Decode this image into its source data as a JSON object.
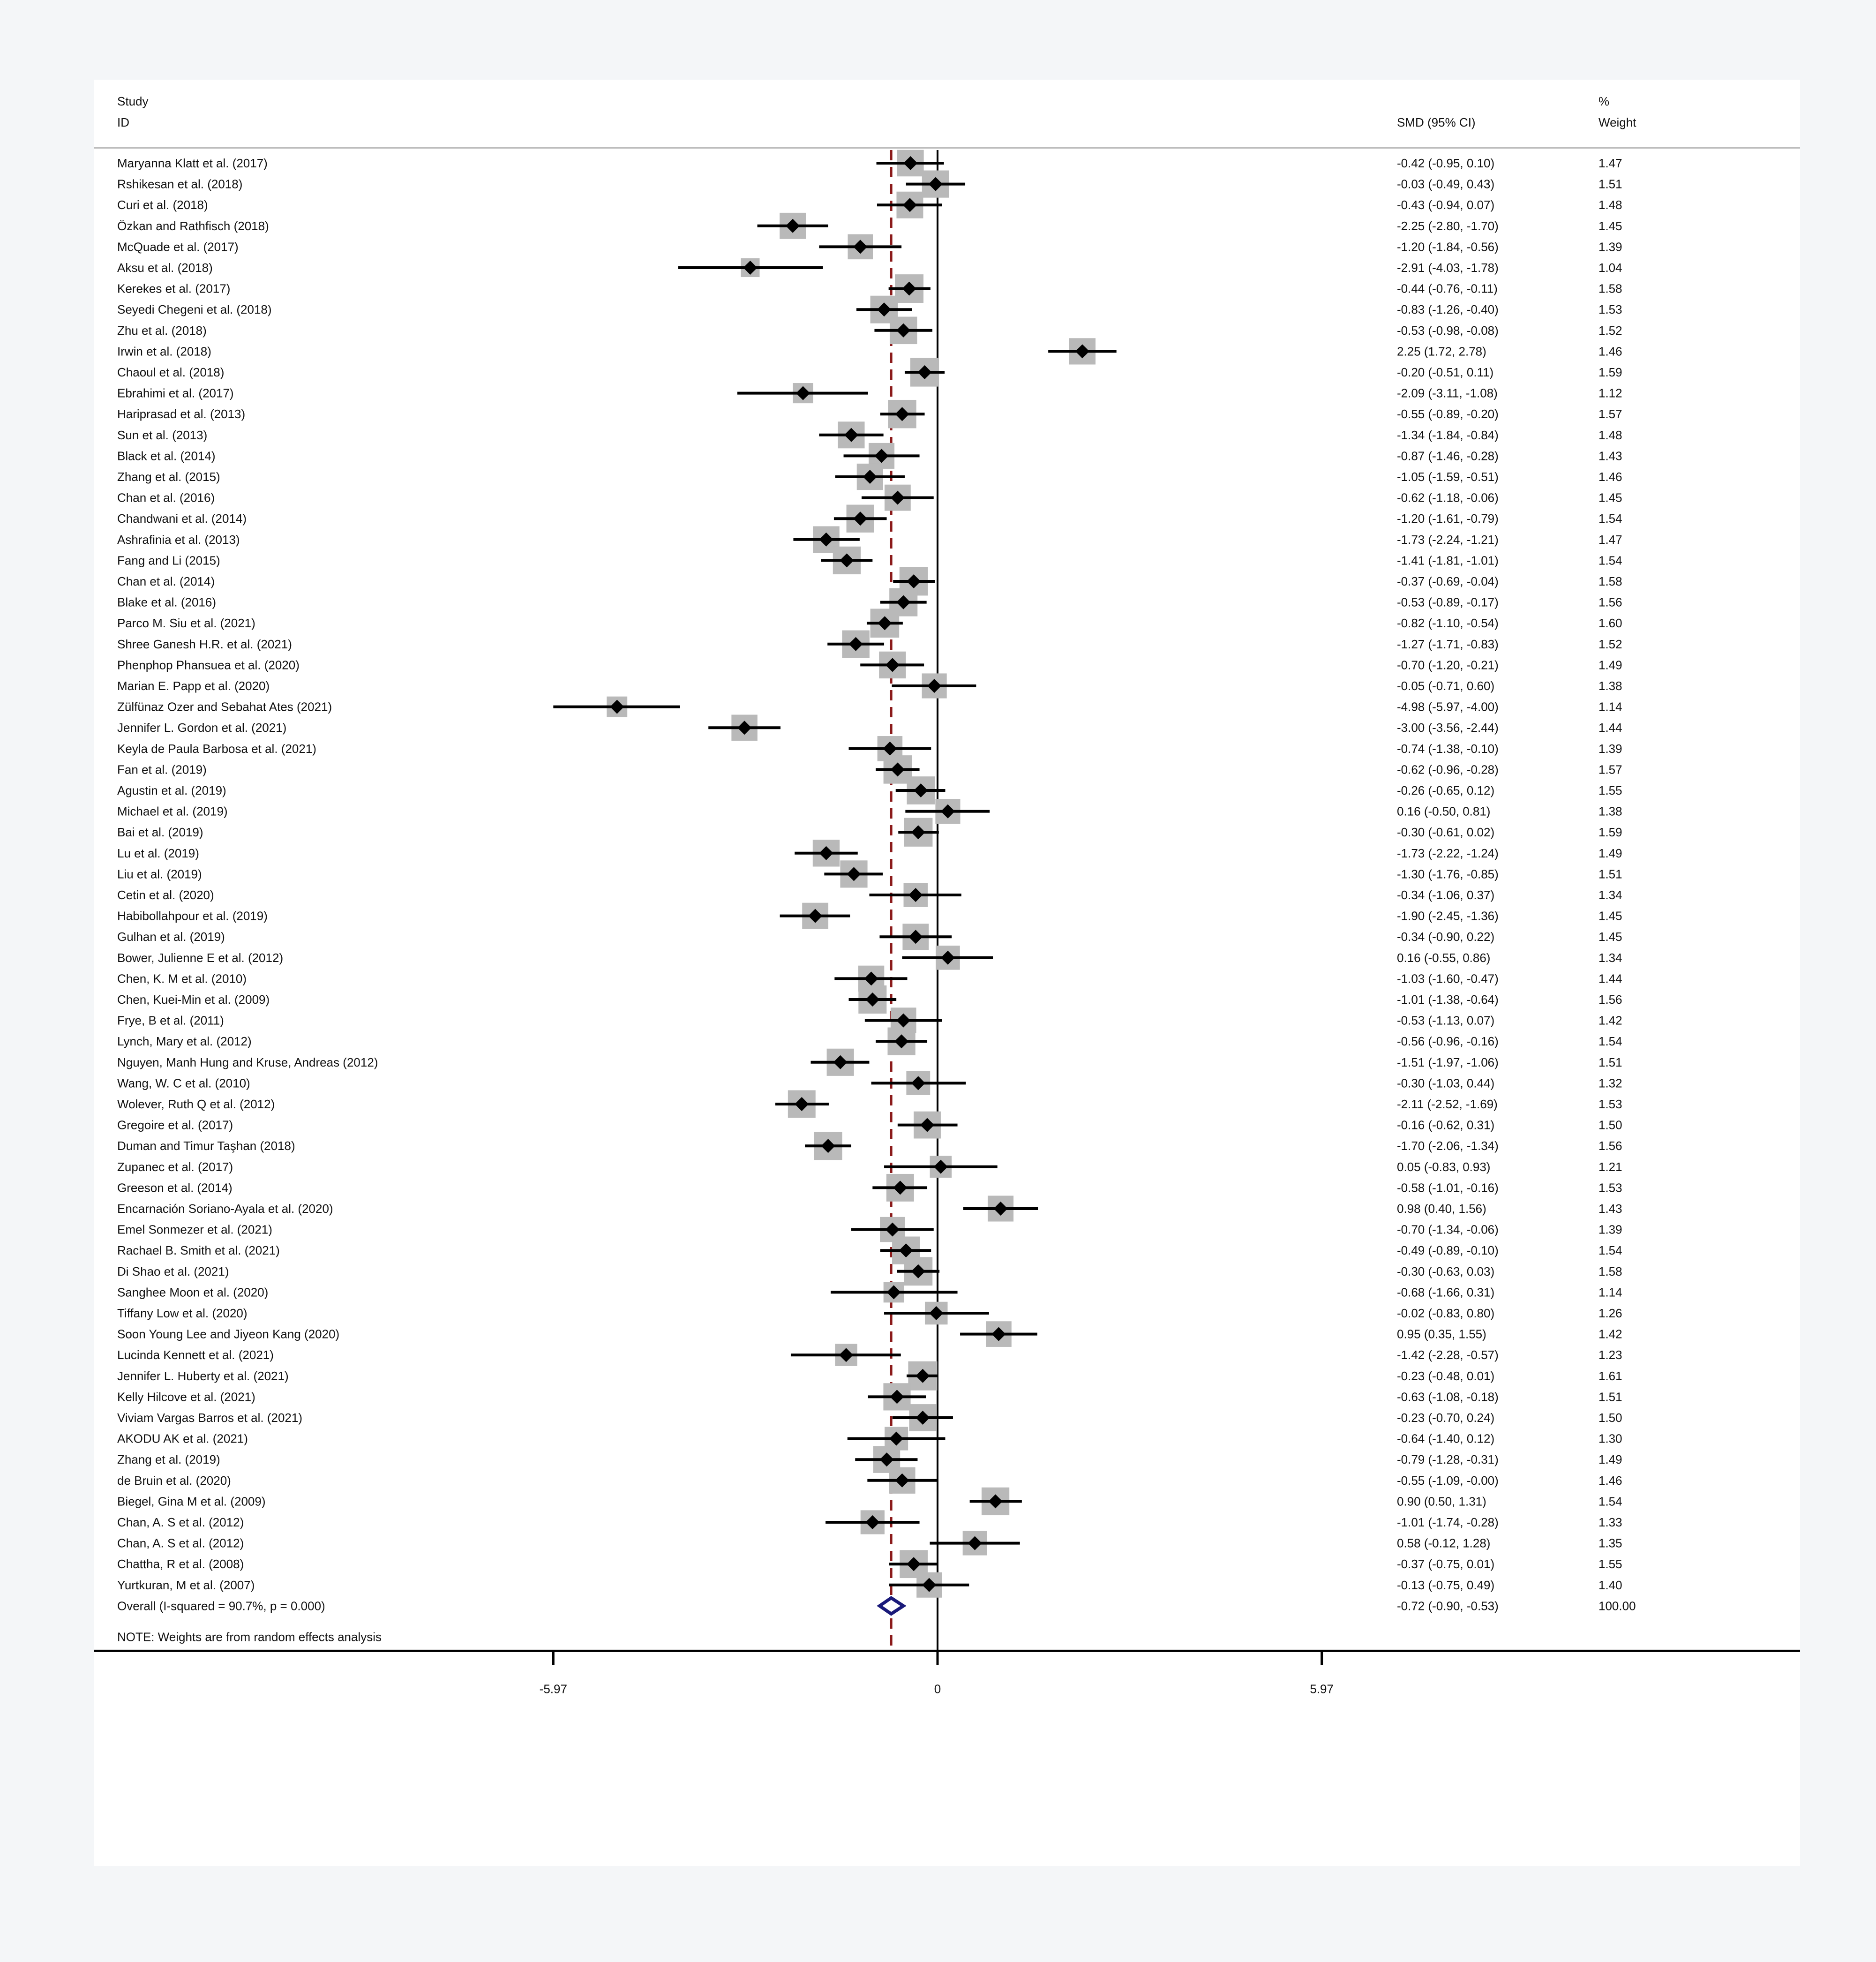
{
  "chart_data": {
    "type": "forest",
    "header": {
      "study_line1": "Study",
      "study_line2": "ID",
      "effect_label": "SMD (95% CI)",
      "weight_line1": "%",
      "weight_line2": "Weight"
    },
    "studies": [
      {
        "label": "Maryanna Klatt et al. (2017)",
        "es": -0.42,
        "lo": -0.95,
        "hi": 0.1,
        "ci_text": "-0.42 (-0.95, 0.10)",
        "weight": "1.47"
      },
      {
        "label": "Rshikesan et al. (2018)",
        "es": -0.03,
        "lo": -0.49,
        "hi": 0.43,
        "ci_text": "-0.03 (-0.49, 0.43)",
        "weight": "1.51"
      },
      {
        "label": "Curi et al. (2018)",
        "es": -0.43,
        "lo": -0.94,
        "hi": 0.07,
        "ci_text": "-0.43 (-0.94, 0.07)",
        "weight": "1.48"
      },
      {
        "label": "Özkan and Rathfisch (2018)",
        "es": -2.25,
        "lo": -2.8,
        "hi": -1.7,
        "ci_text": "-2.25 (-2.80, -1.70)",
        "weight": "1.45"
      },
      {
        "label": "McQuade et al. (2017)",
        "es": -1.2,
        "lo": -1.84,
        "hi": -0.56,
        "ci_text": "-1.20 (-1.84, -0.56)",
        "weight": "1.39"
      },
      {
        "label": "Aksu et al. (2018)",
        "es": -2.91,
        "lo": -4.03,
        "hi": -1.78,
        "ci_text": "-2.91 (-4.03, -1.78)",
        "weight": "1.04"
      },
      {
        "label": "Kerekes et al. (2017)",
        "es": -0.44,
        "lo": -0.76,
        "hi": -0.11,
        "ci_text": "-0.44 (-0.76, -0.11)",
        "weight": "1.58"
      },
      {
        "label": "Seyedi Chegeni et al. (2018)",
        "es": -0.83,
        "lo": -1.26,
        "hi": -0.4,
        "ci_text": "-0.83 (-1.26, -0.40)",
        "weight": "1.53"
      },
      {
        "label": "Zhu et al. (2018)",
        "es": -0.53,
        "lo": -0.98,
        "hi": -0.08,
        "ci_text": "-0.53 (-0.98, -0.08)",
        "weight": "1.52"
      },
      {
        "label": "Irwin et al. (2018)",
        "es": 2.25,
        "lo": 1.72,
        "hi": 2.78,
        "ci_text": "2.25 (1.72, 2.78)",
        "weight": "1.46"
      },
      {
        "label": "Chaoul et al. (2018)",
        "es": -0.2,
        "lo": -0.51,
        "hi": 0.11,
        "ci_text": "-0.20 (-0.51, 0.11)",
        "weight": "1.59"
      },
      {
        "label": "Ebrahimi et al. (2017)",
        "es": -2.09,
        "lo": -3.11,
        "hi": -1.08,
        "ci_text": "-2.09 (-3.11, -1.08)",
        "weight": "1.12"
      },
      {
        "label": "Hariprasad et al. (2013)",
        "es": -0.55,
        "lo": -0.89,
        "hi": -0.2,
        "ci_text": "-0.55 (-0.89, -0.20)",
        "weight": "1.57"
      },
      {
        "label": "Sun et al. (2013)",
        "es": -1.34,
        "lo": -1.84,
        "hi": -0.84,
        "ci_text": "-1.34 (-1.84, -0.84)",
        "weight": "1.48"
      },
      {
        "label": "Black et al. (2014)",
        "es": -0.87,
        "lo": -1.46,
        "hi": -0.28,
        "ci_text": "-0.87 (-1.46, -0.28)",
        "weight": "1.43"
      },
      {
        "label": "Zhang et al. (2015)",
        "es": -1.05,
        "lo": -1.59,
        "hi": -0.51,
        "ci_text": "-1.05 (-1.59, -0.51)",
        "weight": "1.46"
      },
      {
        "label": "Chan et al. (2016)",
        "es": -0.62,
        "lo": -1.18,
        "hi": -0.06,
        "ci_text": "-0.62 (-1.18, -0.06)",
        "weight": "1.45"
      },
      {
        "label": "Chandwani et al. (2014)",
        "es": -1.2,
        "lo": -1.61,
        "hi": -0.79,
        "ci_text": "-1.20 (-1.61, -0.79)",
        "weight": "1.54"
      },
      {
        "label": "Ashrafinia et al. (2013)",
        "es": -1.73,
        "lo": -2.24,
        "hi": -1.21,
        "ci_text": "-1.73 (-2.24, -1.21)",
        "weight": "1.47"
      },
      {
        "label": "Fang and Li (2015)",
        "es": -1.41,
        "lo": -1.81,
        "hi": -1.01,
        "ci_text": "-1.41 (-1.81, -1.01)",
        "weight": "1.54"
      },
      {
        "label": "Chan et al. (2014)",
        "es": -0.37,
        "lo": -0.69,
        "hi": -0.04,
        "ci_text": "-0.37 (-0.69, -0.04)",
        "weight": "1.58"
      },
      {
        "label": "Blake et al. (2016)",
        "es": -0.53,
        "lo": -0.89,
        "hi": -0.17,
        "ci_text": "-0.53 (-0.89, -0.17)",
        "weight": "1.56"
      },
      {
        "label": "Parco M. Siu et al. (2021)",
        "es": -0.82,
        "lo": -1.1,
        "hi": -0.54,
        "ci_text": "-0.82 (-1.10, -0.54)",
        "weight": "1.60"
      },
      {
        "label": "Shree Ganesh H.R. et al. (2021)",
        "es": -1.27,
        "lo": -1.71,
        "hi": -0.83,
        "ci_text": "-1.27 (-1.71, -0.83)",
        "weight": "1.52"
      },
      {
        "label": "Phenphop Phansuea et al. (2020)",
        "es": -0.7,
        "lo": -1.2,
        "hi": -0.21,
        "ci_text": "-0.70 (-1.20, -0.21)",
        "weight": "1.49"
      },
      {
        "label": "Marian E. Papp et al. (2020)",
        "es": -0.05,
        "lo": -0.71,
        "hi": 0.6,
        "ci_text": "-0.05 (-0.71, 0.60)",
        "weight": "1.38"
      },
      {
        "label": "Zülfünaz Ozer and Sebahat Ates (2021)",
        "es": -4.98,
        "lo": -5.97,
        "hi": -4.0,
        "ci_text": "-4.98 (-5.97, -4.00)",
        "weight": "1.14"
      },
      {
        "label": "Jennifer L. Gordon et al. (2021)",
        "es": -3.0,
        "lo": -3.56,
        "hi": -2.44,
        "ci_text": "-3.00 (-3.56, -2.44)",
        "weight": "1.44"
      },
      {
        "label": "Keyla de Paula Barbosa et al. (2021)",
        "es": -0.74,
        "lo": -1.38,
        "hi": -0.1,
        "ci_text": "-0.74 (-1.38, -0.10)",
        "weight": "1.39"
      },
      {
        "label": "Fan et al. (2019)",
        "es": -0.62,
        "lo": -0.96,
        "hi": -0.28,
        "ci_text": "-0.62 (-0.96, -0.28)",
        "weight": "1.57"
      },
      {
        "label": "Agustin et al. (2019)",
        "es": -0.26,
        "lo": -0.65,
        "hi": 0.12,
        "ci_text": "-0.26 (-0.65, 0.12)",
        "weight": "1.55"
      },
      {
        "label": "Michael et al. (2019)",
        "es": 0.16,
        "lo": -0.5,
        "hi": 0.81,
        "ci_text": "0.16 (-0.50, 0.81)",
        "weight": "1.38"
      },
      {
        "label": "Bai et al. (2019)",
        "es": -0.3,
        "lo": -0.61,
        "hi": 0.02,
        "ci_text": "-0.30 (-0.61, 0.02)",
        "weight": "1.59"
      },
      {
        "label": "Lu et al. (2019)",
        "es": -1.73,
        "lo": -2.22,
        "hi": -1.24,
        "ci_text": "-1.73 (-2.22, -1.24)",
        "weight": "1.49"
      },
      {
        "label": "Liu et al. (2019)",
        "es": -1.3,
        "lo": -1.76,
        "hi": -0.85,
        "ci_text": "-1.30 (-1.76, -0.85)",
        "weight": "1.51"
      },
      {
        "label": "Cetin et al. (2020)",
        "es": -0.34,
        "lo": -1.06,
        "hi": 0.37,
        "ci_text": "-0.34 (-1.06, 0.37)",
        "weight": "1.34"
      },
      {
        "label": "Habibollahpour et al. (2019)",
        "es": -1.9,
        "lo": -2.45,
        "hi": -1.36,
        "ci_text": "-1.90 (-2.45, -1.36)",
        "weight": "1.45"
      },
      {
        "label": "Gulhan et al. (2019)",
        "es": -0.34,
        "lo": -0.9,
        "hi": 0.22,
        "ci_text": "-0.34 (-0.90, 0.22)",
        "weight": "1.45"
      },
      {
        "label": "Bower, Julienne E et al. (2012)",
        "es": 0.16,
        "lo": -0.55,
        "hi": 0.86,
        "ci_text": "0.16 (-0.55, 0.86)",
        "weight": "1.34"
      },
      {
        "label": "Chen, K. M et al. (2010)",
        "es": -1.03,
        "lo": -1.6,
        "hi": -0.47,
        "ci_text": "-1.03 (-1.60, -0.47)",
        "weight": "1.44"
      },
      {
        "label": "Chen, Kuei-Min et al. (2009)",
        "es": -1.01,
        "lo": -1.38,
        "hi": -0.64,
        "ci_text": "-1.01 (-1.38, -0.64)",
        "weight": "1.56"
      },
      {
        "label": "Frye, B et al. (2011)",
        "es": -0.53,
        "lo": -1.13,
        "hi": 0.07,
        "ci_text": "-0.53 (-1.13, 0.07)",
        "weight": "1.42"
      },
      {
        "label": "Lynch, Mary et al. (2012)",
        "es": -0.56,
        "lo": -0.96,
        "hi": -0.16,
        "ci_text": "-0.56 (-0.96, -0.16)",
        "weight": "1.54"
      },
      {
        "label": "Nguyen, Manh Hung and Kruse, Andreas (2012)",
        "es": -1.51,
        "lo": -1.97,
        "hi": -1.06,
        "ci_text": "-1.51 (-1.97, -1.06)",
        "weight": "1.51"
      },
      {
        "label": "Wang, W. C et al. (2010)",
        "es": -0.3,
        "lo": -1.03,
        "hi": 0.44,
        "ci_text": "-0.30 (-1.03, 0.44)",
        "weight": "1.32"
      },
      {
        "label": "Wolever, Ruth Q et al. (2012)",
        "es": -2.11,
        "lo": -2.52,
        "hi": -1.69,
        "ci_text": "-2.11 (-2.52, -1.69)",
        "weight": "1.53"
      },
      {
        "label": "Gregoire et al. (2017)",
        "es": -0.16,
        "lo": -0.62,
        "hi": 0.31,
        "ci_text": "-0.16 (-0.62, 0.31)",
        "weight": "1.50"
      },
      {
        "label": "Duman and Timur Taşhan (2018)",
        "es": -1.7,
        "lo": -2.06,
        "hi": -1.34,
        "ci_text": "-1.70 (-2.06, -1.34)",
        "weight": "1.56"
      },
      {
        "label": "Zupanec et al. (2017)",
        "es": 0.05,
        "lo": -0.83,
        "hi": 0.93,
        "ci_text": "0.05 (-0.83, 0.93)",
        "weight": "1.21"
      },
      {
        "label": "Greeson et al. (2014)",
        "es": -0.58,
        "lo": -1.01,
        "hi": -0.16,
        "ci_text": "-0.58 (-1.01, -0.16)",
        "weight": "1.53"
      },
      {
        "label": "Encarnación Soriano-Ayala et al. (2020)",
        "es": 0.98,
        "lo": 0.4,
        "hi": 1.56,
        "ci_text": "0.98 (0.40, 1.56)",
        "weight": "1.43"
      },
      {
        "label": "Emel Sonmezer et al. (2021)",
        "es": -0.7,
        "lo": -1.34,
        "hi": -0.06,
        "ci_text": "-0.70 (-1.34, -0.06)",
        "weight": "1.39"
      },
      {
        "label": "Rachael B. Smith et al. (2021)",
        "es": -0.49,
        "lo": -0.89,
        "hi": -0.1,
        "ci_text": "-0.49 (-0.89, -0.10)",
        "weight": "1.54"
      },
      {
        "label": "Di Shao et al. (2021)",
        "es": -0.3,
        "lo": -0.63,
        "hi": 0.03,
        "ci_text": "-0.30 (-0.63, 0.03)",
        "weight": "1.58"
      },
      {
        "label": "Sanghee Moon et al. (2020)",
        "es": -0.68,
        "lo": -1.66,
        "hi": 0.31,
        "ci_text": "-0.68 (-1.66, 0.31)",
        "weight": "1.14"
      },
      {
        "label": "Tiffany Low et al. (2020)",
        "es": -0.02,
        "lo": -0.83,
        "hi": 0.8,
        "ci_text": "-0.02 (-0.83, 0.80)",
        "weight": "1.26"
      },
      {
        "label": "Soon Young Lee and Jiyeon Kang (2020)",
        "es": 0.95,
        "lo": 0.35,
        "hi": 1.55,
        "ci_text": "0.95 (0.35, 1.55)",
        "weight": "1.42"
      },
      {
        "label": "Lucinda Kennett et al. (2021)",
        "es": -1.42,
        "lo": -2.28,
        "hi": -0.57,
        "ci_text": "-1.42 (-2.28, -0.57)",
        "weight": "1.23"
      },
      {
        "label": "Jennifer L. Huberty et al. (2021)",
        "es": -0.23,
        "lo": -0.48,
        "hi": 0.01,
        "ci_text": "-0.23 (-0.48, 0.01)",
        "weight": "1.61"
      },
      {
        "label": "Kelly Hilcove et al. (2021)",
        "es": -0.63,
        "lo": -1.08,
        "hi": -0.18,
        "ci_text": "-0.63 (-1.08, -0.18)",
        "weight": "1.51"
      },
      {
        "label": "Viviam Vargas Barros et al. (2021)",
        "es": -0.23,
        "lo": -0.7,
        "hi": 0.24,
        "ci_text": "-0.23 (-0.70, 0.24)",
        "weight": "1.50"
      },
      {
        "label": "AKODU AK et al. (2021)",
        "es": -0.64,
        "lo": -1.4,
        "hi": 0.12,
        "ci_text": "-0.64 (-1.40, 0.12)",
        "weight": "1.30"
      },
      {
        "label": "Zhang et al. (2019)",
        "es": -0.79,
        "lo": -1.28,
        "hi": -0.31,
        "ci_text": "-0.79 (-1.28, -0.31)",
        "weight": "1.49"
      },
      {
        "label": "de Bruin et al. (2020)",
        "es": -0.55,
        "lo": -1.09,
        "hi": -0.0,
        "ci_text": "-0.55 (-1.09, -0.00)",
        "weight": "1.46"
      },
      {
        "label": "Biegel, Gina M et al. (2009)",
        "es": 0.9,
        "lo": 0.5,
        "hi": 1.31,
        "ci_text": "0.90 (0.50, 1.31)",
        "weight": "1.54"
      },
      {
        "label": "Chan, A. S et al. (2012)",
        "es": -1.01,
        "lo": -1.74,
        "hi": -0.28,
        "ci_text": "-1.01 (-1.74, -0.28)",
        "weight": "1.33"
      },
      {
        "label": "Chan, A. S et al. (2012)",
        "es": 0.58,
        "lo": -0.12,
        "hi": 1.28,
        "ci_text": "0.58 (-0.12, 1.28)",
        "weight": "1.35"
      },
      {
        "label": "Chattha, R et al. (2008)",
        "es": -0.37,
        "lo": -0.75,
        "hi": 0.01,
        "ci_text": "-0.37 (-0.75, 0.01)",
        "weight": "1.55"
      },
      {
        "label": "Yurtkuran, M et al. (2007)",
        "es": -0.13,
        "lo": -0.75,
        "hi": 0.49,
        "ci_text": "-0.13 (-0.75, 0.49)",
        "weight": "1.40"
      }
    ],
    "overall": {
      "label": "Overall  (I-squared = 90.7%, p = 0.000)",
      "es": -0.72,
      "lo": -0.9,
      "hi": -0.53,
      "ci_text": "-0.72 (-0.90, -0.53)",
      "weight": "100.00"
    },
    "note": "NOTE: Weights are from random effects analysis",
    "x_axis": {
      "min": -5.97,
      "max": 5.97,
      "ticks": [
        {
          "value": -5.97,
          "label": "-5.97"
        },
        {
          "value": 0,
          "label": "0"
        },
        {
          "value": 5.97,
          "label": "5.97"
        }
      ]
    },
    "null_line": 0,
    "colors": {
      "marker": "#000000",
      "weight_box": "#b9b9b9",
      "overall_diamond": "#1a1a7a",
      "overall_line": "#8b1a1a"
    }
  }
}
